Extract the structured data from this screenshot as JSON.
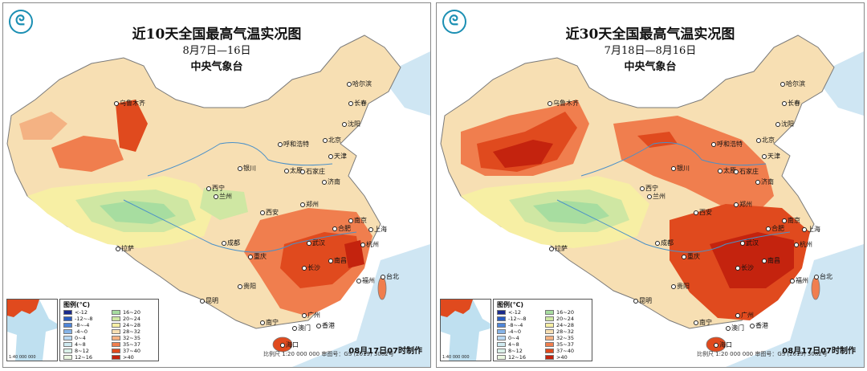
{
  "colors": {
    "sea": "#cfe6f3",
    "c28_32": "#f7dfb3",
    "c32_35": "#f4b283",
    "c35_37": "#f07e4e",
    "c37_40": "#e04a1e",
    "c40": "#c4230e",
    "c24_28": "#f7efa4",
    "c20_24": "#cfe7a3",
    "c16_20": "#a7dda0",
    "neighbour": "#ffffff"
  },
  "panels": [
    {
      "id": "left",
      "title": "近10天全国最高气温实况图",
      "dates": "8月7日—16日",
      "agency": "中央气象台",
      "made": "08月17日07时制作"
    },
    {
      "id": "right",
      "title": "近30天全国最高气温实况图",
      "dates": "7月18日—8月16日",
      "agency": "中央气象台",
      "made": "08月17日07时制作"
    }
  ],
  "cities": [
    {
      "name": "乌鲁木齐"
    },
    {
      "name": "哈尔滨"
    },
    {
      "name": "长春"
    },
    {
      "name": "沈阳"
    },
    {
      "name": "北京"
    },
    {
      "name": "天津"
    },
    {
      "name": "呼和浩特"
    },
    {
      "name": "银川"
    },
    {
      "name": "太原"
    },
    {
      "name": "石家庄"
    },
    {
      "name": "济南"
    },
    {
      "name": "西宁"
    },
    {
      "name": "兰州"
    },
    {
      "name": "西安"
    },
    {
      "name": "郑州"
    },
    {
      "name": "合肥"
    },
    {
      "name": "南京"
    },
    {
      "name": "上海"
    },
    {
      "name": "杭州"
    },
    {
      "name": "武汉"
    },
    {
      "name": "成都"
    },
    {
      "name": "重庆"
    },
    {
      "name": "长沙"
    },
    {
      "name": "南昌"
    },
    {
      "name": "福州"
    },
    {
      "name": "台北"
    },
    {
      "name": "贵阳"
    },
    {
      "name": "昆明"
    },
    {
      "name": "广州"
    },
    {
      "name": "南宁"
    },
    {
      "name": "香港"
    },
    {
      "name": "澳门"
    },
    {
      "name": "海口"
    },
    {
      "name": "拉萨"
    }
  ],
  "legend": {
    "title": "图例(℃)",
    "items": [
      {
        "label": "<-12",
        "color": "#1a2a8c"
      },
      {
        "label": "16~20",
        "color": "#a7dda0"
      },
      {
        "label": "-12~-8",
        "color": "#2a5cc0"
      },
      {
        "label": "20~24",
        "color": "#cfe7a3"
      },
      {
        "label": "-8~-4",
        "color": "#4f86d8"
      },
      {
        "label": "24~28",
        "color": "#f7efa4"
      },
      {
        "label": "-4~0",
        "color": "#86b4e8"
      },
      {
        "label": "28~32",
        "color": "#f7dfb3"
      },
      {
        "label": "0~4",
        "color": "#b8d8f2"
      },
      {
        "label": "32~35",
        "color": "#f4b283"
      },
      {
        "label": "4~8",
        "color": "#cfeaf0"
      },
      {
        "label": "35~37",
        "color": "#f07e4e"
      },
      {
        "label": "8~12",
        "color": "#d9f0e8"
      },
      {
        "label": "37~40",
        "color": "#e04a1e"
      },
      {
        "label": "12~16",
        "color": "#eaf6df"
      },
      {
        "label": ">40",
        "color": "#c4230e"
      }
    ]
  },
  "scale_text": "比例尺 1:20 000 000   审图号：GS (2019) 3082号",
  "inset_scale": "1:40 000 000"
}
